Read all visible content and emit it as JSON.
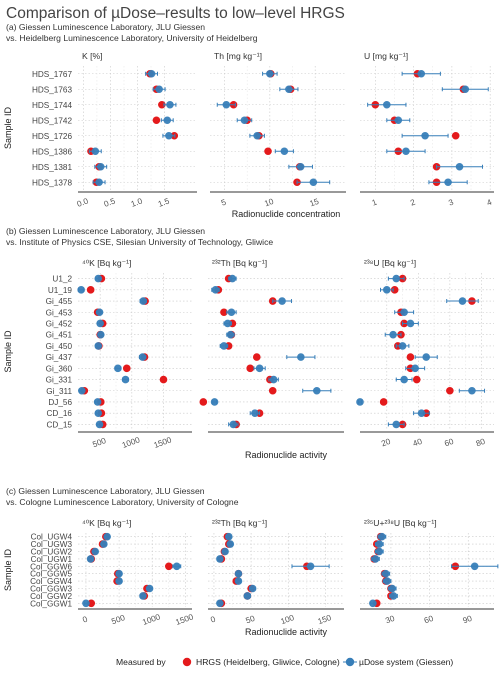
{
  "title": "Comparison of µDose–results to low–level HRGS",
  "legend": {
    "title": "Measured by",
    "items": [
      {
        "label": "HRGS (Heidelberg, Gliwice, Cologne)",
        "color": "#e41a1c"
      },
      {
        "label": "µDose system (Giessen)",
        "color": "#377eb8"
      }
    ]
  },
  "chart_data": [
    {
      "type": "scatter",
      "subtitle": [
        "(a) Giessen Luminescence Laboratory, JLU Giessen",
        "vs. Heidelberg Luminescence Laboratory, University of Heidelberg"
      ],
      "ylabel": "Sample ID",
      "xlabel": "Radionuclide concentration",
      "categories": [
        "HDS_1767",
        "HDS_1763",
        "HDS_1744",
        "HDS_1742",
        "HDS_1726",
        "HDS_1386",
        "HDS_1381",
        "HDS_1378"
      ],
      "facets": [
        {
          "label": "K [%]",
          "xlim": [
            -0.1,
            2.1
          ],
          "ticks": [
            0.0,
            0.5,
            1.0,
            1.5
          ],
          "tick_labels": [
            "0.0",
            "0.5",
            "1.0",
            "1.5"
          ],
          "hrgs": [
            1.23,
            1.35,
            1.45,
            1.35,
            1.68,
            0.14,
            0.29,
            0.24
          ],
          "hrgs_err": [
            0.04,
            0.05,
            0.05,
            0.05,
            0.06,
            0.02,
            0.02,
            0.02
          ],
          "mudose": [
            1.26,
            1.4,
            1.6,
            1.55,
            1.58,
            0.22,
            0.32,
            0.29
          ],
          "mudose_err": [
            0.11,
            0.11,
            0.11,
            0.11,
            0.11,
            0.11,
            0.11,
            0.11
          ]
        },
        {
          "label": "Th [mg kg⁻¹]",
          "xlim": [
            3.4,
            18.4
          ],
          "ticks": [
            5,
            10,
            15
          ],
          "tick_labels": [
            "5",
            "10",
            "15"
          ],
          "hrgs": [
            10.1,
            12.3,
            6.0,
            7.5,
            8.8,
            9.8,
            13.3,
            13.0
          ],
          "hrgs_err": [
            0.2,
            0.2,
            0.2,
            0.2,
            0.2,
            0.2,
            0.2,
            0.2
          ],
          "mudose": [
            10.0,
            12.1,
            5.2,
            7.2,
            8.6,
            11.6,
            13.4,
            14.8
          ],
          "mudose_err": [
            0.8,
            1.0,
            1.0,
            0.8,
            0.8,
            1.0,
            1.3,
            1.8
          ]
        },
        {
          "label": "U [mg kg⁻¹]",
          "xlim": [
            0.6,
            4.1
          ],
          "ticks": [
            1,
            2,
            3,
            4
          ],
          "tick_labels": [
            "1",
            "2",
            "3",
            "4"
          ],
          "hrgs": [
            2.1,
            3.3,
            1.0,
            1.5,
            3.1,
            1.6,
            2.6,
            2.6
          ],
          "hrgs_err": [
            0.06,
            0.06,
            0.06,
            0.06,
            0.06,
            0.06,
            0.06,
            0.06
          ],
          "mudose": [
            2.2,
            3.35,
            1.3,
            1.6,
            2.3,
            1.8,
            3.2,
            2.9
          ],
          "mudose_err": [
            0.5,
            0.6,
            0.5,
            0.3,
            0.6,
            0.5,
            0.6,
            0.5
          ]
        }
      ]
    },
    {
      "type": "scatter",
      "subtitle": [
        "(b) Giessen Luminescence Laboratory, JLU Giessen",
        "vs. Institute of Physics CSE, Silesian University of Technology, Gliwice"
      ],
      "ylabel": "Sample ID",
      "xlabel": "Radionuclide activity",
      "categories": [
        "U1_2",
        "U1_19",
        "Gi_455",
        "Gi_453",
        "Gi_452",
        "Gi_451",
        "Gi_450",
        "Gi_437",
        "Gi_360",
        "Gi_331",
        "Gi_311",
        "DJ_56",
        "CD_16",
        "CD_15"
      ],
      "facets": [
        {
          "label": "⁴⁰K [Bq kg⁻¹]",
          "xlim": [
            150,
            1950
          ],
          "ticks": [
            500,
            1000,
            1500
          ],
          "tick_labels": [
            "500",
            "1000",
            "1500"
          ],
          "hrgs": [
            520,
            350,
            1210,
            460,
            540,
            500,
            480,
            1200,
            920,
            1500,
            250,
            510,
            520,
            540
          ],
          "hrgs_err": [
            15,
            15,
            15,
            15,
            15,
            15,
            15,
            15,
            15,
            15,
            15,
            15,
            15,
            15
          ],
          "mudose": [
            470,
            200,
            1180,
            490,
            500,
            510,
            470,
            1170,
            780,
            900,
            210,
            460,
            470,
            490
          ],
          "mudose_err": [
            40,
            40,
            50,
            40,
            40,
            40,
            40,
            50,
            45,
            45,
            30,
            40,
            40,
            40
          ]
        },
        {
          "label": "²³²Th [Bq kg⁻¹]",
          "xlim": [
            15,
            160
          ],
          "ticks": [],
          "tick_labels": [],
          "hrgs": [
            37,
            26,
            84,
            32,
            41,
            40,
            37,
            67,
            60,
            81,
            84,
            10,
            70,
            45
          ],
          "hrgs_err": [
            1,
            1,
            1,
            1,
            1,
            1,
            1,
            1,
            1,
            1,
            1,
            1,
            1,
            1
          ],
          "mudose": [
            41,
            23,
            94,
            40,
            36,
            39,
            32,
            114,
            70,
            85,
            131,
            22,
            65,
            42
          ],
          "mudose_err": [
            4,
            4,
            10,
            5,
            4,
            4,
            4,
            15,
            6,
            5,
            15,
            2,
            5,
            5
          ]
        },
        {
          "label": "²³⁸U [Bq kg⁻¹]",
          "xlim": [
            3,
            88
          ],
          "ticks": [
            20,
            40,
            60,
            80
          ],
          "tick_labels": [
            "20",
            "40",
            "60",
            "80"
          ],
          "hrgs": [
            30,
            25,
            74,
            29,
            31,
            29,
            27,
            35,
            35,
            39,
            60,
            18,
            45,
            30
          ],
          "hrgs_err": [
            1,
            1,
            1,
            1,
            1,
            1,
            1,
            1,
            1,
            1,
            1,
            1,
            1,
            1
          ],
          "mudose": [
            26,
            20,
            68,
            31,
            35,
            24,
            30,
            45,
            38,
            31,
            74,
            3,
            42,
            26
          ],
          "mudose_err": [
            5,
            4,
            10,
            6,
            5,
            5,
            4,
            7,
            6,
            5,
            8,
            1,
            5,
            5
          ]
        }
      ]
    },
    {
      "type": "scatter",
      "subtitle": [
        "(c) Giessen Luminescence Laboratory, JLU Giessen",
        "vs. Cologne Luminescence Laboratory, University of Cologne"
      ],
      "ylabel": "Sample ID",
      "xlabel": "Radionuclide activity",
      "categories": [
        "Col_UGW4",
        "Col_UGW3",
        "Col_UGW2",
        "Col_UGW1",
        "Col_GGW6",
        "Col_GGW5",
        "Col_GGW4",
        "Col_GGW3",
        "Col_GGW2",
        "Col_GGW1"
      ],
      "facets": [
        {
          "label": "⁴⁰K [Bq kg⁻¹]",
          "xlim": [
            -120,
            1600
          ],
          "ticks": [
            0,
            500,
            1000,
            1500
          ],
          "tick_labels": [
            "0",
            "500",
            "1000",
            "1500"
          ],
          "hrgs": [
            300,
            250,
            120,
            80,
            1250,
            480,
            470,
            920,
            880,
            80
          ],
          "hrgs_err": [
            20,
            20,
            20,
            20,
            30,
            20,
            20,
            20,
            20,
            20
          ],
          "mudose": [
            320,
            270,
            140,
            70,
            1370,
            500,
            500,
            960,
            860,
            0
          ],
          "mudose_err": [
            35,
            35,
            35,
            30,
            60,
            35,
            35,
            40,
            40,
            20
          ]
        },
        {
          "label": "²³²Th [Bq kg⁻¹]",
          "xlim": [
            -8,
            175
          ],
          "ticks": [
            0,
            50,
            100,
            150
          ],
          "tick_labels": [
            "0",
            "50",
            "100",
            "150"
          ],
          "hrgs": [
            18,
            20,
            14,
            10,
            125,
            33,
            30,
            50,
            45,
            10
          ],
          "hrgs_err": [
            1,
            1,
            1,
            1,
            2,
            1,
            1,
            1,
            1,
            1
          ],
          "mudose": [
            20,
            22,
            15,
            8,
            130,
            33,
            33,
            52,
            45,
            8
          ],
          "mudose_err": [
            3,
            3,
            3,
            3,
            25,
            3,
            3,
            4,
            4,
            3
          ]
        },
        {
          "label": "²³⁵U+²³⁸U [Bq kg⁻¹]",
          "xlim": [
            6,
            110
          ],
          "ticks": [
            30,
            60,
            90
          ],
          "tick_labels": [
            "30",
            "60",
            "90"
          ],
          "hrgs": [
            22,
            19,
            20,
            17,
            80,
            25,
            26,
            30,
            30,
            19
          ],
          "hrgs_err": [
            1,
            1,
            1,
            1,
            1,
            1,
            1,
            1,
            1,
            1
          ],
          "mudose": [
            23,
            21,
            21,
            18,
            95,
            26,
            27,
            31,
            32,
            16
          ],
          "mudose_err": [
            3,
            3,
            3,
            3,
            18,
            3,
            3,
            3,
            3,
            2
          ]
        }
      ]
    }
  ]
}
